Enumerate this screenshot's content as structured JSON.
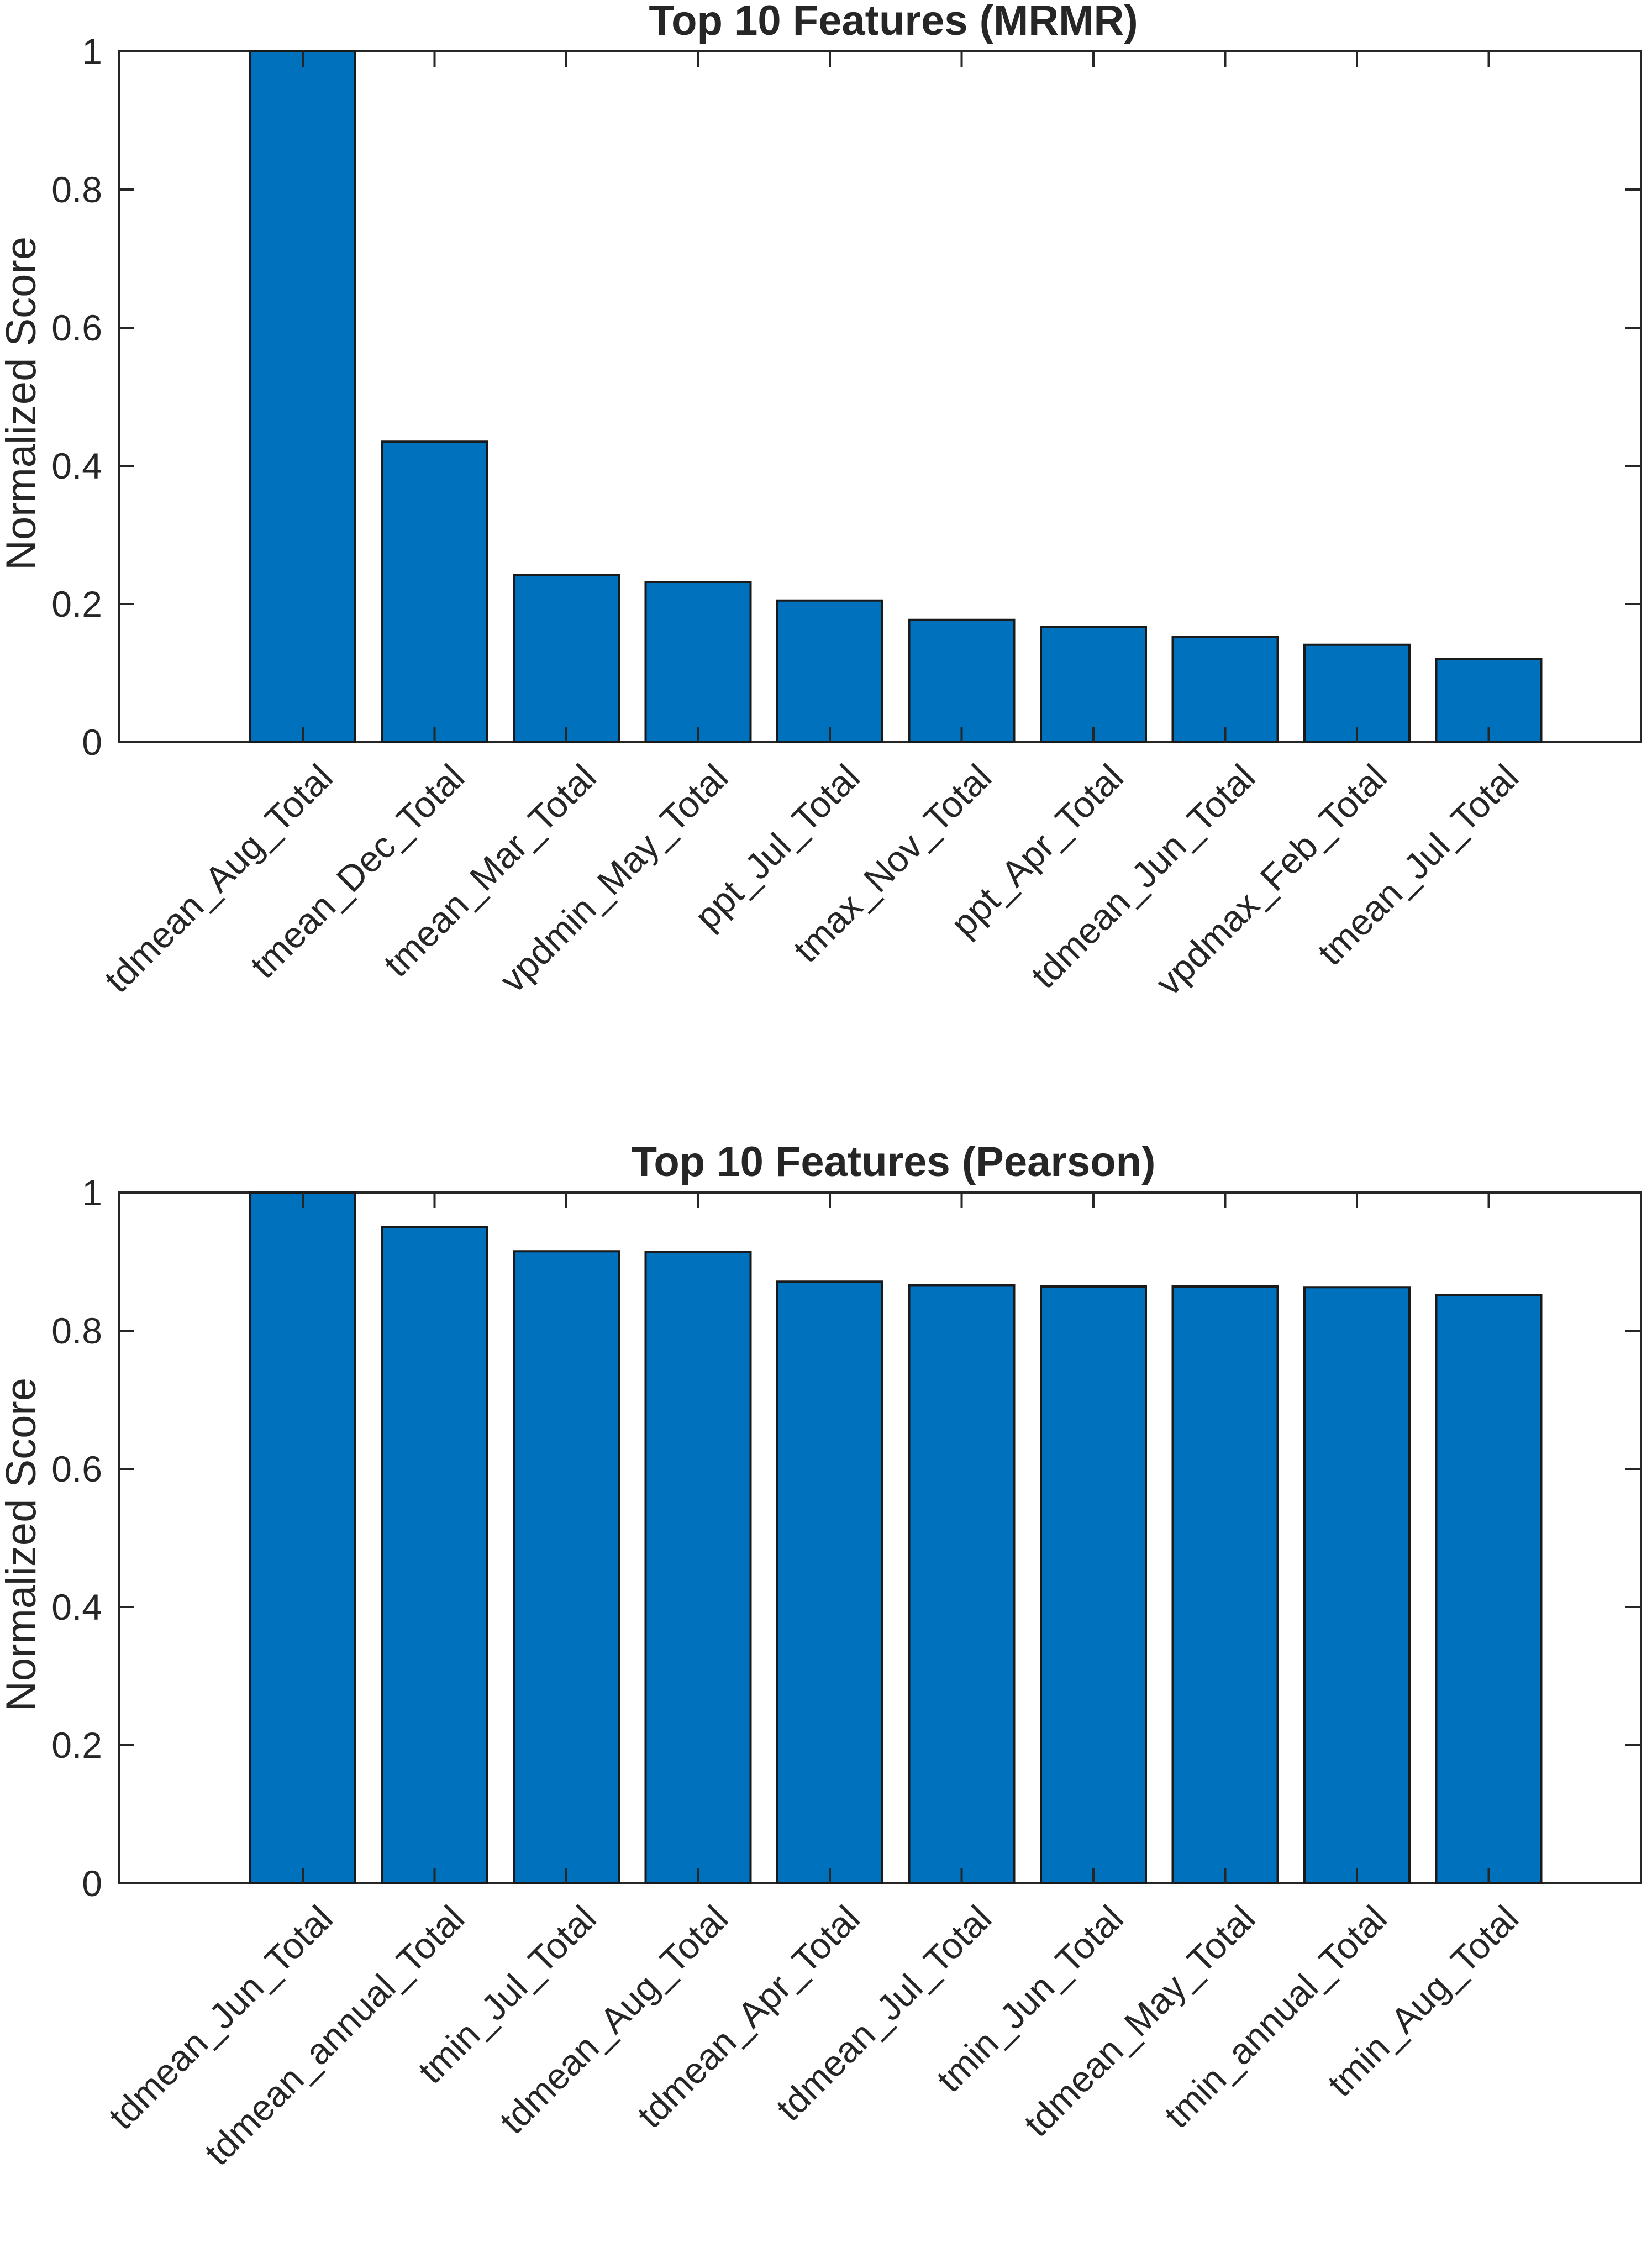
{
  "bar_color": "#0072BD",
  "chart_data": [
    {
      "type": "bar",
      "title": "Top 10 Features (MRMR)",
      "xlabel": "",
      "ylabel": "Normalized Score",
      "ylim": [
        0,
        1
      ],
      "yticks": [
        0,
        0.2,
        0.4,
        0.6,
        0.8,
        1
      ],
      "ytick_labels": [
        "0",
        "0.2",
        "0.4",
        "0.6",
        "0.8",
        "1"
      ],
      "grid": false,
      "legend": "none",
      "categories": [
        "tdmean_Aug_Total",
        "tmean_Dec_Total",
        "tmean_Mar_Total",
        "vpdmin_May_Total",
        "ppt_Jul_Total",
        "tmax_Nov_Total",
        "ppt_Apr_Total",
        "tdmean_Jun_Total",
        "vpdmax_Feb_Total",
        "tmean_Jul_Total"
      ],
      "values": [
        1.0,
        0.435,
        0.242,
        0.232,
        0.205,
        0.177,
        0.167,
        0.152,
        0.141,
        0.12
      ]
    },
    {
      "type": "bar",
      "title": "Top 10 Features (Pearson)",
      "xlabel": "",
      "ylabel": "Normalized Score",
      "ylim": [
        0,
        1
      ],
      "yticks": [
        0,
        0.2,
        0.4,
        0.6,
        0.8,
        1
      ],
      "ytick_labels": [
        "0",
        "0.2",
        "0.4",
        "0.6",
        "0.8",
        "1"
      ],
      "grid": false,
      "legend": "none",
      "categories": [
        "tdmean_Jun_Total",
        "tdmean_annual_Total",
        "tmin_Jul_Total",
        "tdmean_Aug_Total",
        "tdmean_Apr_Total",
        "tdmean_Jul_Total",
        "tmin_Jun_Total",
        "tdmean_May_Total",
        "tmin_annual_Total",
        "tmin_Aug_Total"
      ],
      "values": [
        1.0,
        0.95,
        0.915,
        0.914,
        0.871,
        0.866,
        0.864,
        0.864,
        0.863,
        0.852
      ]
    }
  ]
}
